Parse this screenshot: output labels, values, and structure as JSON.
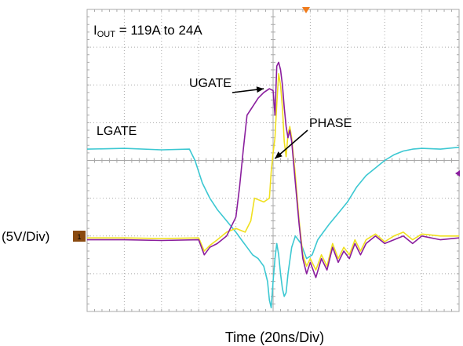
{
  "chart_data": {
    "type": "line",
    "title_prefix": "I",
    "title_sub": "OUT",
    "title_suffix": " = 119A to 24A",
    "xlabel": "Time (20ns/Div)",
    "ylabel": "(5V/Div)",
    "ground_marker": "1",
    "grid": true,
    "divisions": {
      "x": 10,
      "y": 8
    },
    "x_scale_ns_per_div": 20,
    "y_scale_v_per_div": 5,
    "xlim_ns": [
      0,
      200
    ],
    "ylim_div": [
      -4,
      4
    ],
    "annotations": [
      {
        "text": "UGATE",
        "target_ns": 95,
        "target_div": 1.9
      },
      {
        "text": "PHASE",
        "target_ns": 101,
        "target_div": 0.05
      },
      {
        "text": "LGATE"
      }
    ],
    "colors": {
      "lgate": "#3cc8d2",
      "ugate": "#8a1e9e",
      "phase": "#f0e020",
      "grid": "#a9a9a9",
      "arrow": "#000000",
      "marker": "#8a4a10",
      "trigger": "#f07a1a"
    },
    "series": [
      {
        "name": "LGATE",
        "x": [
          0,
          20,
          40,
          55,
          58,
          62,
          66,
          70,
          75,
          80,
          83,
          86,
          89,
          92,
          95,
          97,
          98,
          99,
          100,
          101,
          102,
          103,
          104,
          105,
          106,
          107,
          108,
          110,
          112,
          115,
          118,
          121,
          124,
          127,
          130,
          135,
          140,
          145,
          150,
          155,
          160,
          165,
          170,
          175,
          180,
          190,
          200
        ],
        "y": [
          0.3,
          0.32,
          0.28,
          0.3,
          0.0,
          -0.6,
          -1.0,
          -1.3,
          -1.6,
          -1.9,
          -2.1,
          -2.3,
          -2.5,
          -2.6,
          -2.8,
          -3.2,
          -3.7,
          -3.9,
          -3.2,
          -2.6,
          -2.2,
          -2.5,
          -3.0,
          -3.4,
          -3.6,
          -3.5,
          -3.0,
          -2.3,
          -2.0,
          -2.2,
          -2.6,
          -2.5,
          -2.1,
          -1.9,
          -1.7,
          -1.4,
          -1.1,
          -0.7,
          -0.4,
          -0.2,
          0.0,
          0.15,
          0.25,
          0.3,
          0.32,
          0.3,
          0.35
        ]
      },
      {
        "name": "UGATE",
        "x": [
          0,
          20,
          40,
          60,
          63,
          66,
          70,
          75,
          80,
          82,
          84,
          86,
          88,
          90,
          92,
          95,
          98,
          100,
          101,
          102,
          103,
          104,
          105,
          106,
          107,
          108,
          109,
          110,
          112,
          114,
          116,
          118,
          120,
          123,
          126,
          129,
          132,
          135,
          138,
          141,
          144,
          147,
          150,
          155,
          160,
          165,
          170,
          175,
          180,
          190,
          200
        ],
        "y": [
          -2.1,
          -2.1,
          -2.12,
          -2.1,
          -2.5,
          -2.3,
          -2.2,
          -2.0,
          -1.5,
          -0.7,
          0.3,
          1.2,
          1.35,
          1.5,
          1.65,
          1.8,
          1.9,
          1.85,
          1.2,
          2.5,
          2.6,
          2.4,
          2.0,
          1.4,
          0.9,
          0.6,
          0.8,
          0.5,
          -0.6,
          -1.7,
          -2.6,
          -3.0,
          -2.7,
          -3.1,
          -2.6,
          -2.9,
          -2.3,
          -2.7,
          -2.4,
          -2.6,
          -2.2,
          -2.5,
          -2.2,
          -2.0,
          -2.2,
          -2.1,
          -2.0,
          -2.2,
          -2.0,
          -2.1,
          -2.05
        ]
      },
      {
        "name": "PHASE",
        "x": [
          0,
          20,
          40,
          60,
          63,
          66,
          70,
          75,
          80,
          85,
          88,
          90,
          95,
          98,
          99,
          100,
          101,
          102,
          103,
          104,
          105,
          106,
          107,
          108,
          109,
          110,
          112,
          114,
          116,
          118,
          120,
          123,
          126,
          129,
          132,
          135,
          138,
          141,
          144,
          147,
          150,
          155,
          160,
          165,
          170,
          175,
          180,
          190,
          200
        ],
        "y": [
          -2.05,
          -2.05,
          -2.07,
          -2.05,
          -2.4,
          -2.25,
          -2.1,
          -1.9,
          -1.8,
          -1.9,
          -1.6,
          -1.0,
          -1.1,
          -1.0,
          -0.3,
          0.2,
          0.6,
          1.5,
          2.3,
          2.0,
          1.4,
          0.5,
          0.1,
          0.7,
          0.9,
          0.6,
          -0.4,
          -1.6,
          -2.5,
          -2.8,
          -2.6,
          -2.9,
          -2.5,
          -2.8,
          -2.2,
          -2.6,
          -2.3,
          -2.5,
          -2.1,
          -2.4,
          -2.1,
          -1.95,
          -2.15,
          -2.0,
          -1.9,
          -2.1,
          -1.95,
          -2.0,
          -2.0
        ]
      }
    ]
  }
}
